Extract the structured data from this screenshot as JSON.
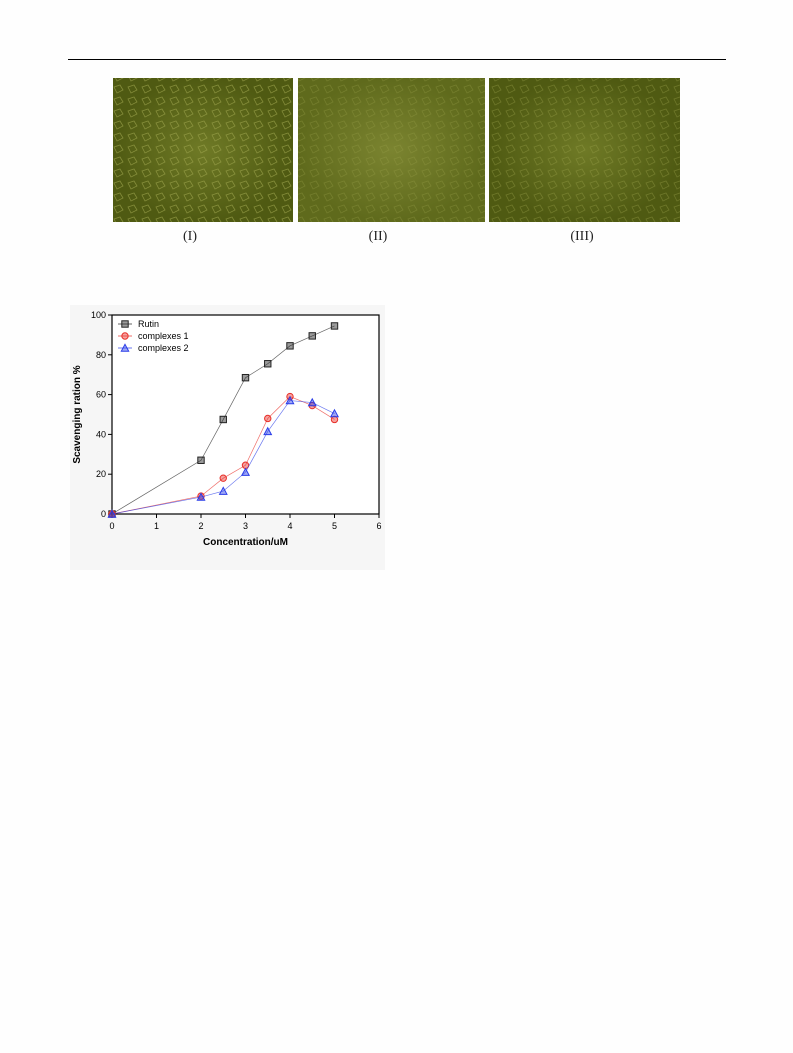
{
  "panels": [
    "(I)",
    "(II)",
    "(III)"
  ],
  "chart_data": {
    "type": "line",
    "xlabel": "Concentration/uM",
    "ylabel": "Scavenging ration %",
    "x": [
      0,
      2,
      2.5,
      3,
      3.5,
      4,
      4.5,
      5
    ],
    "series": [
      {
        "name": "Rutin",
        "color": "#222222",
        "marker": "square",
        "values": [
          0,
          27,
          47.5,
          68.5,
          75.5,
          84.5,
          89.5,
          94.5
        ]
      },
      {
        "name": "complexes 1",
        "color": "#e8302a",
        "marker": "circle",
        "values": [
          0,
          9,
          18,
          24.5,
          48,
          59,
          54.5,
          47.5
        ]
      },
      {
        "name": "complexes 2",
        "color": "#2a3de8",
        "marker": "triangle",
        "values": [
          0,
          8.5,
          11.5,
          21,
          41.5,
          57,
          56,
          50.5
        ]
      }
    ],
    "xlim": [
      0,
      6
    ],
    "xticks": [
      0,
      1,
      2,
      3,
      4,
      5,
      6
    ],
    "ylim": [
      0,
      100
    ],
    "yticks": [
      0,
      20,
      40,
      60,
      80,
      100
    ],
    "legend": "upper-left"
  }
}
